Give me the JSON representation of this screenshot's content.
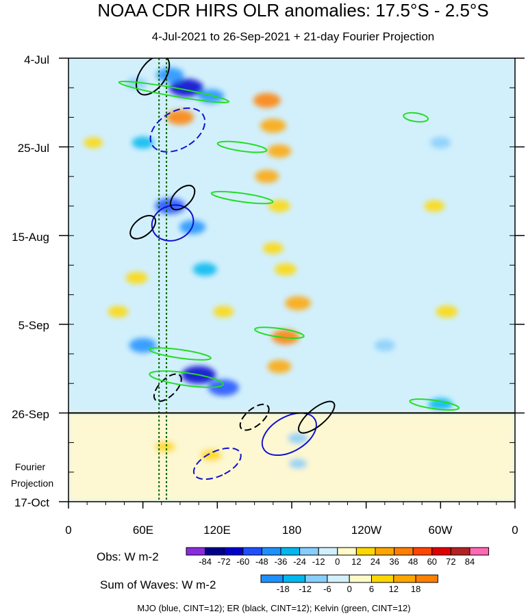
{
  "chart_data": {
    "type": "heatmap",
    "title": "NOAA CDR HIRS OLR anomalies: 17.5°S - 2.5°S",
    "subtitle": "4-Jul-2021 to 26-Sep-2021 + 21-day Fourier Projection",
    "y_tick_labels": [
      "4-Jul",
      "25-Jul",
      "15-Aug",
      "5-Sep",
      "26-Sep"
    ],
    "y_bottom_label": "17-Oct",
    "projection_label_line1": "Fourier",
    "projection_label_line2": "Projection",
    "x_tick_labels": [
      "0",
      "60E",
      "120E",
      "180",
      "120W",
      "60W",
      "0"
    ],
    "xlim": [
      0,
      360
    ],
    "y_range_days": [
      0,
      105
    ],
    "obs_end_day": 84,
    "y_tick_days": [
      0,
      21,
      42,
      63,
      84
    ],
    "x_tick_lons": [
      0,
      60,
      120,
      180,
      240,
      300,
      360
    ],
    "reference_lines_lon": [
      73,
      79
    ],
    "obs_colorbar": {
      "label": "Obs: W m-2",
      "levels": [
        "-84",
        "-72",
        "-60",
        "-48",
        "-36",
        "-24",
        "-12",
        "0",
        "12",
        "24",
        "36",
        "48",
        "60",
        "72",
        "84"
      ],
      "colors": [
        "#8a2be2",
        "#00008b",
        "#0000cd",
        "#1e50ff",
        "#1e90ff",
        "#00b7ef",
        "#87cefa",
        "#d2f0fc",
        "#fffac8",
        "#ffd700",
        "#ffa500",
        "#ff7f00",
        "#ff4500",
        "#e00000",
        "#b22222",
        "#ff69b4"
      ]
    },
    "wave_colorbar": {
      "label": "Sum of Waves: W m-2",
      "levels": [
        "-18",
        "-12",
        "-6",
        "0",
        "6",
        "12",
        "18"
      ],
      "colors": [
        "#1e90ff",
        "#00b7ef",
        "#87cefa",
        "#d2f0fc",
        "#fffac8",
        "#ffd700",
        "#ffa500",
        "#ff7f00"
      ]
    },
    "footer": "MJO (blue, CINT=12); ER (black, CINT=12); Kelvin (green, CINT=12)",
    "anomaly_blobs": [
      {
        "lon": 55,
        "day": 6,
        "v": -20
      },
      {
        "lon": 95,
        "day": 7,
        "v": -60
      },
      {
        "lon": 82,
        "day": 4,
        "v": -40
      },
      {
        "lon": 115,
        "day": 9,
        "v": -36
      },
      {
        "lon": 90,
        "day": 14,
        "v": 40
      },
      {
        "lon": 160,
        "day": 10,
        "v": 40
      },
      {
        "lon": 165,
        "day": 16,
        "v": 36
      },
      {
        "lon": 170,
        "day": 22,
        "v": 30
      },
      {
        "lon": 160,
        "day": 28,
        "v": 30
      },
      {
        "lon": 170,
        "day": 35,
        "v": 24
      },
      {
        "lon": 165,
        "day": 45,
        "v": 20
      },
      {
        "lon": 175,
        "day": 50,
        "v": 24
      },
      {
        "lon": 185,
        "day": 58,
        "v": 36
      },
      {
        "lon": 175,
        "day": 66,
        "v": 40
      },
      {
        "lon": 170,
        "day": 73,
        "v": 30
      },
      {
        "lon": 60,
        "day": 20,
        "v": -24
      },
      {
        "lon": 82,
        "day": 35,
        "v": -48
      },
      {
        "lon": 100,
        "day": 40,
        "v": -36
      },
      {
        "lon": 110,
        "day": 50,
        "v": -30
      },
      {
        "lon": 60,
        "day": 68,
        "v": -40
      },
      {
        "lon": 105,
        "day": 75,
        "v": -60
      },
      {
        "lon": 125,
        "day": 78,
        "v": -50
      },
      {
        "lon": 55,
        "day": 52,
        "v": 24
      },
      {
        "lon": 40,
        "day": 60,
        "v": 20
      },
      {
        "lon": 125,
        "day": 60,
        "v": 20
      },
      {
        "lon": 20,
        "day": 20,
        "v": 16
      },
      {
        "lon": 295,
        "day": 35,
        "v": 20
      },
      {
        "lon": 305,
        "day": 60,
        "v": 24
      },
      {
        "lon": 300,
        "day": 82,
        "v": -30
      },
      {
        "lon": 255,
        "day": 68,
        "v": -20
      },
      {
        "lon": 300,
        "day": 20,
        "v": -20
      },
      {
        "lon": 185,
        "day": 90,
        "v": -20
      },
      {
        "lon": 78,
        "day": 92,
        "v": 20
      },
      {
        "lon": 115,
        "day": 94,
        "v": 24
      },
      {
        "lon": 185,
        "day": 96,
        "v": -14
      }
    ],
    "wave_contours": [
      {
        "wave": "MJO",
        "lon": 88,
        "day": 17,
        "dlon": 15,
        "dday": 7,
        "angle": 60,
        "dashed": true
      },
      {
        "wave": "MJO",
        "lon": 84,
        "day": 39,
        "dlon": 14,
        "dday": 5,
        "angle": 70,
        "dashed": false
      },
      {
        "wave": "MJO",
        "lon": 120,
        "day": 96,
        "dlon": 10,
        "dday": 6,
        "angle": 65,
        "dashed": true
      },
      {
        "wave": "MJO",
        "lon": 178,
        "day": 89,
        "dlon": 14,
        "dday": 7,
        "angle": 60,
        "dashed": false
      },
      {
        "wave": "ER",
        "lon": 68,
        "day": 4,
        "dlon": 18,
        "dday": 3,
        "angle": -55,
        "dashed": false
      },
      {
        "wave": "ER",
        "lon": 60,
        "day": 40,
        "dlon": 12,
        "dday": 2,
        "angle": -40,
        "dashed": false
      },
      {
        "wave": "ER",
        "lon": 92,
        "day": 33,
        "dlon": 12,
        "dday": 2,
        "angle": -45,
        "dashed": false
      },
      {
        "wave": "ER",
        "lon": 80,
        "day": 78,
        "dlon": 14,
        "dday": 2,
        "angle": -45,
        "dashed": true
      },
      {
        "wave": "ER",
        "lon": 200,
        "day": 85,
        "dlon": 18,
        "dday": 2,
        "angle": -40,
        "dashed": false
      },
      {
        "wave": "ER",
        "lon": 150,
        "day": 85,
        "dlon": 14,
        "dday": 2,
        "angle": -40,
        "dashed": true
      },
      {
        "wave": "Kelvin",
        "lon": 85,
        "day": 8,
        "dlon": 45,
        "dday": 1,
        "angle": 10,
        "dashed": false
      },
      {
        "wave": "Kelvin",
        "lon": 140,
        "day": 21,
        "dlon": 20,
        "dday": 1,
        "angle": 8,
        "dashed": false
      },
      {
        "wave": "Kelvin",
        "lon": 140,
        "day": 33,
        "dlon": 25,
        "dday": 1,
        "angle": 8,
        "dashed": false
      },
      {
        "wave": "Kelvin",
        "lon": 170,
        "day": 65,
        "dlon": 20,
        "dday": 1,
        "angle": 8,
        "dashed": false
      },
      {
        "wave": "Kelvin",
        "lon": 90,
        "day": 70,
        "dlon": 25,
        "dday": 1,
        "angle": 8,
        "dashed": false
      },
      {
        "wave": "Kelvin",
        "lon": 95,
        "day": 76,
        "dlon": 30,
        "dday": 1.5,
        "angle": 8,
        "dashed": false
      },
      {
        "wave": "Kelvin",
        "lon": 280,
        "day": 14,
        "dlon": 10,
        "dday": 1,
        "angle": 8,
        "dashed": false
      },
      {
        "wave": "Kelvin",
        "lon": 295,
        "day": 82,
        "dlon": 20,
        "dday": 1,
        "angle": 8,
        "dashed": false
      }
    ]
  }
}
